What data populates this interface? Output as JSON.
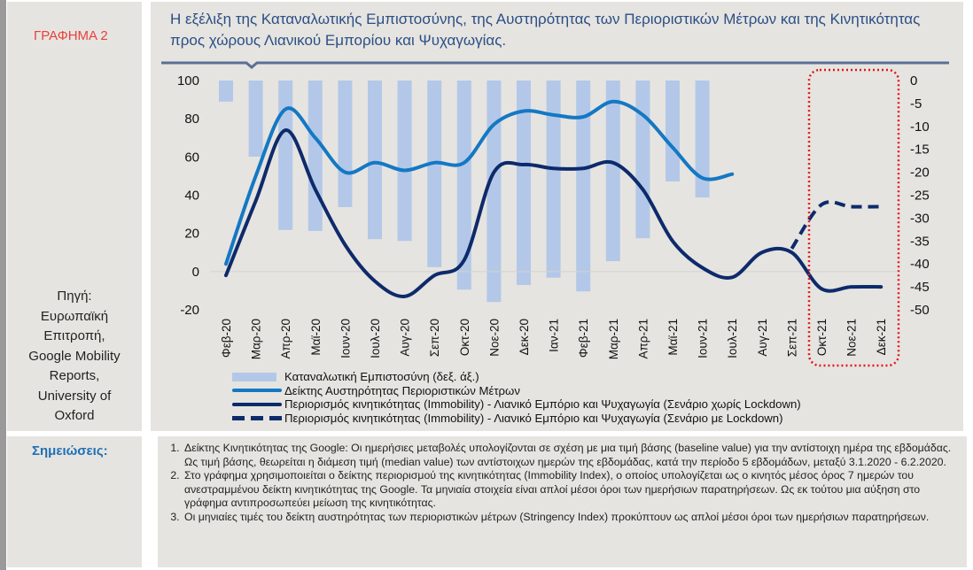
{
  "sidebar": {
    "graph_label": "ΓΡΑΦΗΜΑ 2",
    "source_lines": [
      "Πηγή:",
      "Ευρωπαϊκή",
      "Επιτροπή,",
      "Google Mobility",
      "Reports,",
      "University of",
      "Oxford"
    ],
    "notes_label": "Σημειώσεις:"
  },
  "colors": {
    "bars": "#b3c8e8",
    "stringency": "#1478c4",
    "mobility": "#0d2a6b",
    "highlight_box": "#e0191e",
    "title": "#2a4f86",
    "graph_label": "#e8413c",
    "notes_label": "#1f6fb5"
  },
  "notes": [
    "Δείκτης Κινητικότητας της Google: Οι ημερήσιες μεταβολές υπολογίζονται σε σχέση με μια τιμή βάσης (baseline value) για την αντίστοιχη ημέρα της εβδομάδας. Ως τιμή βάσης, θεωρείται η διάμεση τιμή (median value) των αντίστοιχων ημερών της εβδομάδας, κατά την περίοδο 5 εβδομάδων, μεταξύ 3.1.2020 - 6.2.2020.",
    "Στο γράφημα χρησιμοποιείται ο δείκτης περιορισμού της κινητικότητας (Immobility Index), ο οποίος υπολογίζεται ως ο κινητός μέσος όρος 7 ημερών του ανεστραμμένου δείκτη κινητικότητας της Google. Τα μηνιαία στοιχεία είναι απλοί μέσοι όροι των ημερήσιων παρατηρήσεων. Ως εκ τούτου μια αύξηση στο γράφημα αντιπροσωπεύει μείωση της κινητικότητας.",
    "Οι μηνιαίες τιμές του δείκτη αυστηρότητας των περιοριστικών μέτρων (Stringency Index) προκύπτουν ως απλοί μέσοι όροι των ημερήσιων παρατηρήσεων."
  ],
  "chart_data": {
    "type": "bar+line",
    "title": "Η εξέλιξη της Καταναλωτικής Εμπιστοσύνης, της Αυστηρότητας των Περιοριστικών Μέτρων και της Κινητικότητας προς χώρους Λιανικού Εμπορίου και Ψυχαγωγίας.",
    "categories": [
      "Φεβ-20",
      "Μαρ-20",
      "Απρ-20",
      "Μαϊ-20",
      "Ιουν-20",
      "Ιουλ-20",
      "Αυγ-20",
      "Σεπ-20",
      "Οκτ-20",
      "Νοε-20",
      "Δεκ-20",
      "Ιαν-21",
      "Φεβ-21",
      "Μαρ-21",
      "Απρ-21",
      "Μαϊ-21",
      "Ιουν-21",
      "Ιουλ-21",
      "Αυγ-21",
      "Σεπ-21",
      "Οκτ-21",
      "Νοε-21",
      "Δεκ-21"
    ],
    "left_axis": {
      "ylim": [
        -20,
        100
      ],
      "ticks": [
        "100",
        "80",
        "60",
        "40",
        "20",
        "0",
        "-20"
      ]
    },
    "right_axis": {
      "ylim": [
        -50,
        0
      ],
      "ticks": [
        "0",
        "-5",
        "-10",
        "-15",
        "-20",
        "-25",
        "-30",
        "-35",
        "-40",
        "-45",
        "-50"
      ]
    },
    "series": [
      {
        "name": "Καταναλωτική Εμπιστοσύνη (δεξ. άξ.)",
        "type": "bar",
        "axis": "right",
        "values": [
          -4.6,
          -16.6,
          -32.6,
          -32.8,
          -27.6,
          -34.6,
          -35.0,
          -40.7,
          -45.6,
          -48.3,
          -44.6,
          -43.0,
          -46.0,
          -39.4,
          -34.4,
          -22.0,
          -25.5,
          null,
          null,
          null,
          null,
          null,
          null
        ]
      },
      {
        "name": "Δείκτης Αυστηρότητας Περιοριστικών Μέτρων",
        "type": "line",
        "axis": "left",
        "style": "solid",
        "values": [
          4,
          50,
          85,
          70,
          52,
          57,
          53,
          57,
          57,
          77,
          84,
          82,
          81,
          89,
          82,
          65,
          49,
          51,
          null,
          null,
          null,
          null,
          null
        ]
      },
      {
        "name": "Περιορισμός κινητικότητας (Immobility) - Λιανικό Εμπόριο και Ψυχαγωγία (Σενάριο χωρίς Lockdown)",
        "type": "line",
        "axis": "left",
        "style": "solid",
        "values": [
          -2,
          37,
          74,
          43,
          14,
          -5,
          -13,
          -2,
          6,
          52,
          56,
          54,
          54,
          57,
          43,
          16,
          2,
          -3,
          10,
          10,
          -9,
          -8,
          -8
        ]
      },
      {
        "name": "Περιορισμός κινητικότητας (Immobility) - Λιανικό Εμπόριο και Ψυχαγωγία (Σενάριο με Lockdown)",
        "type": "line",
        "axis": "left",
        "style": "dashed",
        "values": [
          null,
          null,
          null,
          null,
          null,
          null,
          null,
          null,
          null,
          null,
          null,
          null,
          null,
          null,
          null,
          null,
          null,
          null,
          null,
          12,
          35,
          34,
          34
        ]
      }
    ],
    "legend_labels": [
      "Καταναλωτική Εμπιστοσύνη (δεξ. άξ.)",
      "Δείκτης Αυστηρότητας Περιοριστικών Μέτρων",
      "Περιορισμός κινητικότητας (Immobility)  - Λιανικό Εμπόριο και Ψυχαγωγία (Σενάριο χωρίς Lockdown)",
      "Περιορισμός κινητικότητας (Immobility)  - Λιανικό Εμπόριο και Ψυχαγωγία (Σενάριο με Lockdown)"
    ],
    "legend_position": "bottom",
    "annotation": "dotted red box highlighting Οκτ-21 to Δεκ-21",
    "grid": false
  }
}
